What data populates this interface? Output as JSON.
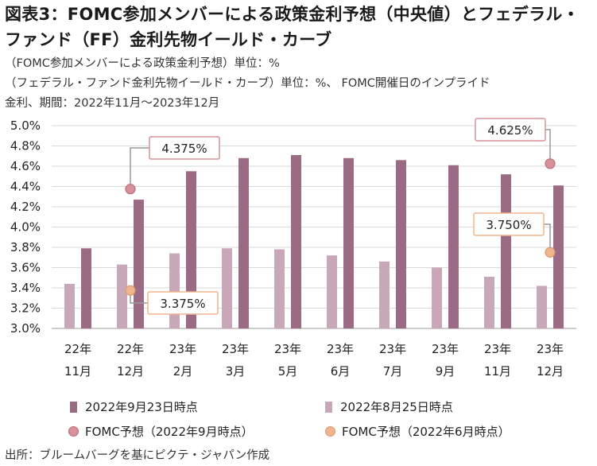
{
  "title": "図表3：FOMC参加メンバーによる政策金利予想（中央値）とフェデラル・ファンド（FF）金利先物イールド・カーブ",
  "subtitle_lines": [
    "（FOMC参加メンバーによる政策金利予想）単位：%",
    "（フェデラル・ファンド金利先物イールド・カーブ）単位：%、 FOMC開催日のインプライド",
    "金利、期間：2022年11月〜2023年12月"
  ],
  "source": "出所：ブルームバーグを基にピクテ・ジャパン作成",
  "colors": {
    "sep23": "#9b6a85",
    "aug25": "#c7a7b8",
    "fomc_sep": "#d8919a",
    "fomc_jun": "#f0b48e",
    "grid": "#d9d9d9",
    "axis": "#999999"
  },
  "chart_data": {
    "type": "bar",
    "categories": [
      [
        "22年",
        "11月"
      ],
      [
        "22年",
        "12月"
      ],
      [
        "23年",
        "2月"
      ],
      [
        "23年",
        "3月"
      ],
      [
        "23年",
        "5月"
      ],
      [
        "23年",
        "6月"
      ],
      [
        "23年",
        "7月"
      ],
      [
        "23年",
        "9月"
      ],
      [
        "23年",
        "11月"
      ],
      [
        "23年",
        "12月"
      ]
    ],
    "ylim": [
      3.0,
      5.0
    ],
    "yticks": [
      "3.0%",
      "3.2%",
      "3.4%",
      "3.6%",
      "3.8%",
      "4.0%",
      "4.2%",
      "4.4%",
      "4.6%",
      "4.8%",
      "5.0%"
    ],
    "series": [
      {
        "name": "2022年8月25日時点",
        "kind": "bar",
        "color": "#c7a7b8",
        "values": [
          3.44,
          3.63,
          3.74,
          3.79,
          3.78,
          3.72,
          3.66,
          3.6,
          3.51,
          3.42
        ]
      },
      {
        "name": "2022年9月23日時点",
        "kind": "bar",
        "color": "#9b6a85",
        "values": [
          3.79,
          4.27,
          4.55,
          4.68,
          4.71,
          4.68,
          4.66,
          4.61,
          4.52,
          4.41
        ]
      },
      {
        "name": "FOMC予想（2022年9月時点）",
        "kind": "point",
        "color": "#d8919a",
        "points": [
          {
            "category_index": 1,
            "value": 4.375,
            "label": "4.375%"
          },
          {
            "category_index": 9,
            "value": 4.625,
            "label": "4.625%"
          }
        ]
      },
      {
        "name": "FOMC予想（2022年6月時点）",
        "kind": "point",
        "color": "#f0b48e",
        "points": [
          {
            "category_index": 1,
            "value": 3.375,
            "label": "3.375%"
          },
          {
            "category_index": 9,
            "value": 3.75,
            "label": "3.750%"
          }
        ]
      }
    ],
    "legend": [
      "2022年9月23日時点",
      "2022年8月25日時点",
      "FOMC予想（2022年9月時点）",
      "FOMC予想（2022年6月時点）"
    ],
    "legend_position": "bottom",
    "grid": true
  }
}
